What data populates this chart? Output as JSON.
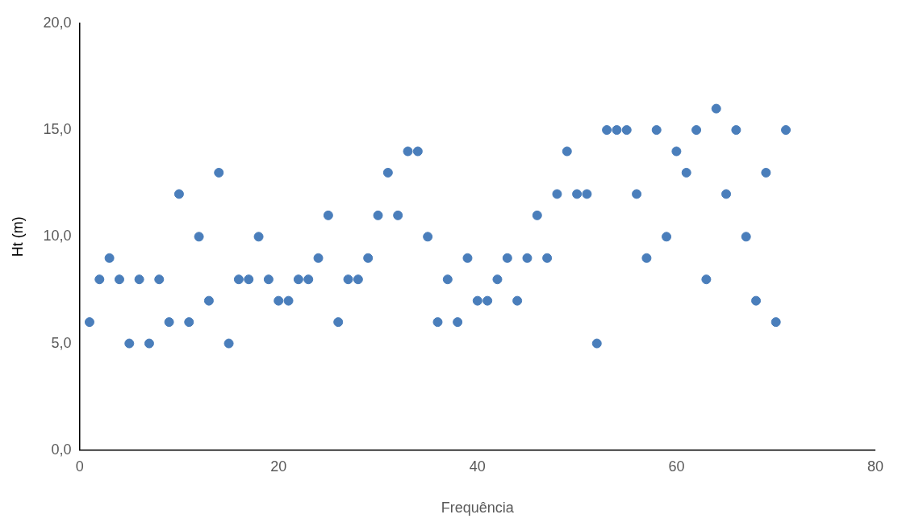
{
  "chart_data": {
    "type": "scatter",
    "xlabel": "Frequência",
    "ylabel": "Ht (m)",
    "marker": "circle",
    "grid": false,
    "legend": false,
    "xlim": [
      0,
      80
    ],
    "xticks": [
      0,
      20,
      40,
      60,
      80
    ],
    "ylim": [
      0,
      20
    ],
    "yticks": [
      {
        "value": 0,
        "label": "0,0"
      },
      {
        "value": 5,
        "label": "5,0"
      },
      {
        "value": 10,
        "label": "10,0"
      },
      {
        "value": 15,
        "label": "15,0"
      },
      {
        "value": 20,
        "label": "20,0"
      }
    ],
    "series": [
      {
        "color": "#4a7ebb",
        "x": [
          1,
          2,
          3,
          4,
          5,
          6,
          7,
          8,
          9,
          10,
          11,
          12,
          13,
          14,
          15,
          16,
          17,
          18,
          19,
          20,
          21,
          22,
          23,
          24,
          25,
          26,
          27,
          28,
          29,
          30,
          31,
          32,
          33,
          34,
          35,
          36,
          37,
          38,
          39,
          40,
          41,
          42,
          43,
          44,
          45,
          46,
          47,
          48,
          49,
          50,
          51,
          52,
          53,
          54,
          55,
          56,
          57,
          58,
          59,
          60,
          61,
          62,
          63,
          64,
          65,
          66,
          67,
          68,
          69,
          70,
          71
        ],
        "values": [
          6,
          8,
          9,
          8,
          5,
          8,
          5,
          8,
          6,
          12,
          6,
          10,
          7,
          13,
          5,
          8,
          8,
          10,
          8,
          7,
          7,
          8,
          8,
          9,
          11,
          6,
          8,
          8,
          9,
          11,
          13,
          11,
          14,
          14,
          10,
          6,
          8,
          6,
          9,
          7,
          7,
          8,
          9,
          7,
          9,
          11,
          9,
          12,
          14,
          12,
          12,
          5,
          15,
          15,
          15,
          12,
          9,
          15,
          10,
          14,
          13,
          15,
          8,
          16,
          12,
          15,
          10,
          7,
          13,
          6,
          15
        ]
      }
    ]
  }
}
